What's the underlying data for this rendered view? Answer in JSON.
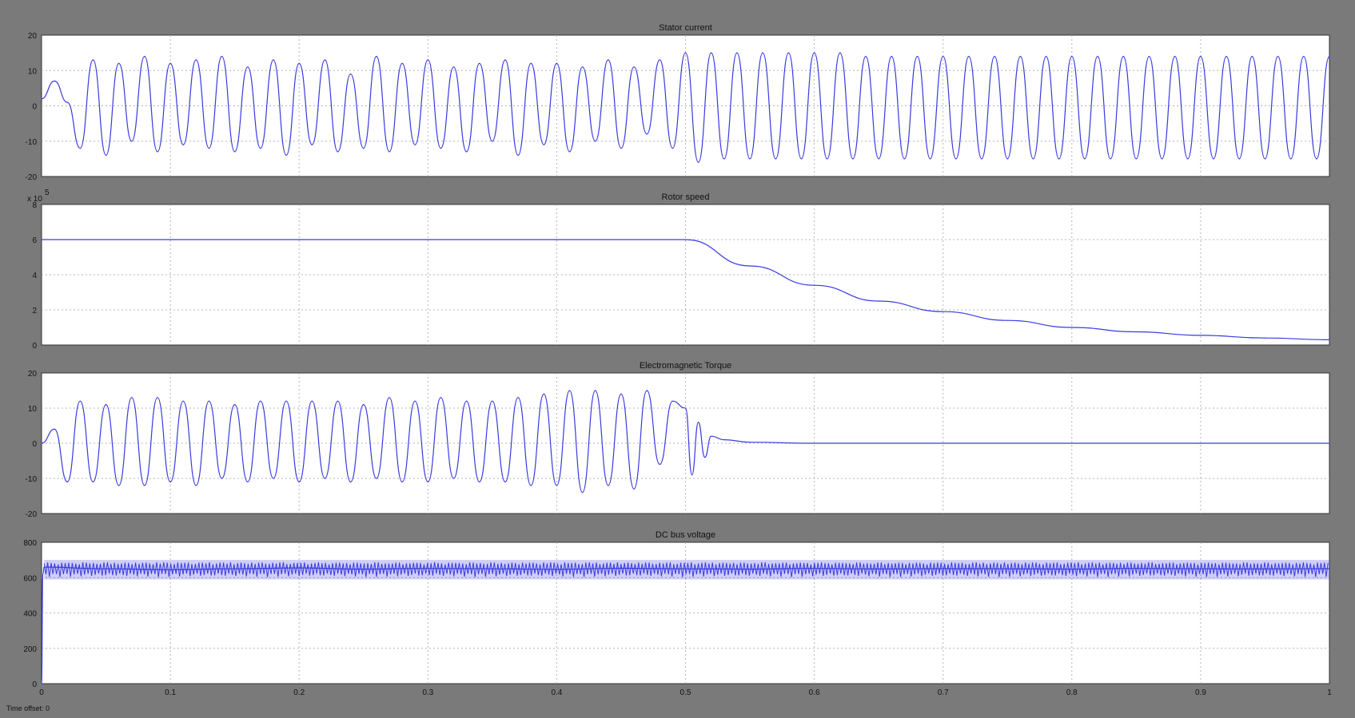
{
  "status_text": "Time offset: 0",
  "colors": {
    "background": "#7a7a7a",
    "plot_bg": "#ffffff",
    "trace": "#3a3adf",
    "grid": "#b5b5b5"
  },
  "chart_data": [
    {
      "type": "line",
      "title": "Stator current",
      "xlim": [
        0,
        1
      ],
      "ylim": [
        -20,
        20
      ],
      "xticks": [
        0,
        0.1,
        0.2,
        0.3,
        0.4,
        0.5,
        0.6,
        0.7,
        0.8,
        0.9,
        1
      ],
      "yticks": [
        -20,
        -10,
        0,
        10,
        20
      ],
      "grid": true,
      "series": [
        {
          "x": [
            0,
            0.01,
            0.02,
            0.03,
            0.04,
            0.05,
            0.06,
            0.07,
            0.08,
            0.09,
            0.1,
            0.11,
            0.12,
            0.13,
            0.14,
            0.15,
            0.16,
            0.17,
            0.18,
            0.19,
            0.2,
            0.21,
            0.22,
            0.23,
            0.24,
            0.25,
            0.26,
            0.27,
            0.28,
            0.29,
            0.3,
            0.31,
            0.32,
            0.33,
            0.34,
            0.35,
            0.36,
            0.37,
            0.38,
            0.39,
            0.4,
            0.41,
            0.42,
            0.43,
            0.44,
            0.45,
            0.46,
            0.47,
            0.48,
            0.49,
            0.5,
            0.51,
            0.52,
            0.53,
            0.54,
            0.55,
            0.56,
            0.57,
            0.58,
            0.59,
            0.6,
            0.61,
            0.62,
            0.63,
            0.64,
            0.65,
            0.66,
            0.67,
            0.68,
            0.69,
            0.7,
            0.71,
            0.72,
            0.73,
            0.74,
            0.75,
            0.76,
            0.77,
            0.78,
            0.79,
            0.8,
            0.81,
            0.82,
            0.83,
            0.84,
            0.85,
            0.86,
            0.87,
            0.88,
            0.89,
            0.9,
            0.91,
            0.92,
            0.93,
            0.94,
            0.95,
            0.96,
            0.97,
            0.98,
            0.99,
            1
          ],
          "y": [
            2,
            7,
            1,
            -12,
            13,
            -14,
            12,
            -10,
            14,
            -13,
            12,
            -11,
            13,
            -12,
            14,
            -13,
            11,
            -12,
            13,
            -14,
            12,
            -11,
            13,
            -13,
            9,
            -12,
            14,
            -13,
            12,
            -11,
            13,
            -12,
            11,
            -13,
            12,
            -10,
            13,
            -14,
            12,
            -11,
            12,
            -13,
            11,
            -10,
            13,
            -12,
            11,
            -8,
            13,
            -12,
            15,
            -16,
            15,
            -15,
            15,
            -15,
            15,
            -15,
            15,
            -15,
            15,
            -15,
            15,
            -15,
            14,
            -15,
            14,
            -15,
            14,
            -15,
            14,
            -15,
            14,
            -15,
            14,
            -15,
            14,
            -15,
            14,
            -15,
            14,
            -15,
            14,
            -15,
            14,
            -15,
            14,
            -15,
            14,
            -15,
            14,
            -15,
            14,
            -15,
            14,
            -15,
            14,
            -15,
            14,
            -15,
            14
          ]
        }
      ]
    },
    {
      "type": "line",
      "title": "Rotor speed",
      "multiplier_label": "x 10",
      "multiplier_exponent": "5",
      "xlim": [
        0,
        1
      ],
      "ylim": [
        0,
        8
      ],
      "xticks": [
        0,
        0.1,
        0.2,
        0.3,
        0.4,
        0.5,
        0.6,
        0.7,
        0.8,
        0.9,
        1
      ],
      "yticks": [
        0,
        2,
        4,
        6,
        8
      ],
      "grid": true,
      "series": [
        {
          "x": [
            0,
            0.1,
            0.2,
            0.3,
            0.4,
            0.5,
            0.55,
            0.6,
            0.65,
            0.7,
            0.75,
            0.8,
            0.85,
            0.9,
            0.95,
            1
          ],
          "y": [
            6,
            6,
            6,
            6,
            6,
            6,
            4.5,
            3.4,
            2.5,
            1.9,
            1.4,
            1.0,
            0.75,
            0.55,
            0.4,
            0.3
          ]
        }
      ]
    },
    {
      "type": "line",
      "title": "Electromagnetic Torque",
      "xlim": [
        0,
        1
      ],
      "ylim": [
        -20,
        20
      ],
      "xticks": [
        0,
        0.1,
        0.2,
        0.3,
        0.4,
        0.5,
        0.6,
        0.7,
        0.8,
        0.9,
        1
      ],
      "yticks": [
        -20,
        -10,
        0,
        10,
        20
      ],
      "grid": true,
      "series": [
        {
          "x": [
            0,
            0.01,
            0.02,
            0.03,
            0.04,
            0.05,
            0.06,
            0.07,
            0.08,
            0.09,
            0.1,
            0.11,
            0.12,
            0.13,
            0.14,
            0.15,
            0.16,
            0.17,
            0.18,
            0.19,
            0.2,
            0.21,
            0.22,
            0.23,
            0.24,
            0.25,
            0.26,
            0.27,
            0.28,
            0.29,
            0.3,
            0.31,
            0.32,
            0.33,
            0.34,
            0.35,
            0.36,
            0.37,
            0.38,
            0.39,
            0.4,
            0.41,
            0.42,
            0.43,
            0.44,
            0.45,
            0.46,
            0.47,
            0.48,
            0.49,
            0.5,
            0.505,
            0.51,
            0.515,
            0.52,
            0.53,
            0.55,
            0.6,
            0.7,
            0.8,
            0.9,
            1
          ],
          "y": [
            0,
            4,
            -11,
            12,
            -11,
            11,
            -12,
            13,
            -12,
            13,
            -11,
            12,
            -12,
            12,
            -10,
            11,
            -11,
            12,
            -10,
            12,
            -11,
            12,
            -10,
            12,
            -11,
            11,
            -10,
            13,
            -11,
            12,
            -11,
            13,
            -10,
            12,
            -11,
            12,
            -11,
            13,
            -12,
            14,
            -12,
            15,
            -14,
            15,
            -12,
            14,
            -13,
            15,
            -6,
            12,
            10,
            -9,
            6,
            -4,
            2,
            1,
            0.3,
            0,
            0,
            0,
            0,
            0
          ]
        }
      ]
    },
    {
      "type": "line",
      "title": "DC bus voltage",
      "xlim": [
        0,
        1
      ],
      "ylim": [
        0,
        800
      ],
      "xticks": [
        0,
        0.1,
        0.2,
        0.3,
        0.4,
        0.5,
        0.6,
        0.7,
        0.8,
        0.9,
        1
      ],
      "yticks": [
        0,
        200,
        400,
        600,
        800
      ],
      "grid": true,
      "series": [
        {
          "x": [
            0,
            0.001,
            0.002,
            0.05,
            0.1,
            0.15,
            0.2,
            0.25,
            0.3,
            0.35,
            0.4,
            0.45,
            0.5,
            0.55,
            0.6,
            0.65,
            0.7,
            0.75,
            0.8,
            0.85,
            0.9,
            0.95,
            1
          ],
          "y": [
            0,
            620,
            660,
            650,
            645,
            650,
            655,
            648,
            652,
            650,
            647,
            653,
            650,
            648,
            652,
            649,
            651,
            650,
            648,
            652,
            650,
            649,
            651
          ],
          "band_low": 590,
          "band_high": 700
        }
      ]
    }
  ]
}
